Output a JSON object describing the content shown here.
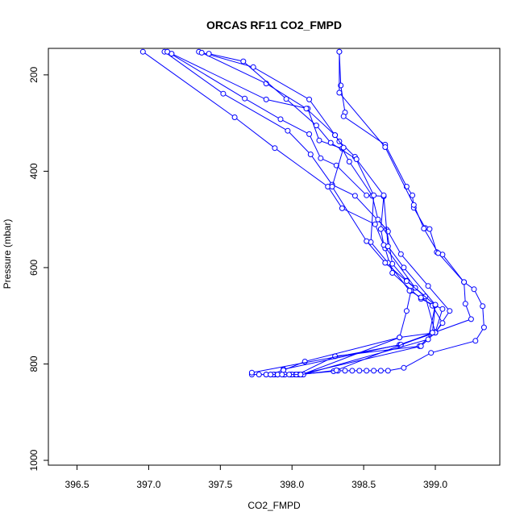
{
  "chart_data": {
    "type": "line",
    "title": "ORCAS RF11 CO2_FMPD",
    "xlabel": "CO2_FMPD",
    "ylabel": "Pressure (mbar)",
    "xlim": [
      396.3,
      399.45
    ],
    "ylim": [
      1010,
      145
    ],
    "y_reversed": true,
    "x_ticks": [
      "396.5",
      "397.0",
      "397.5",
      "398.0",
      "398.5",
      "399.0"
    ],
    "y_ticks": [
      "200",
      "400",
      "600",
      "800",
      "1000"
    ],
    "grid": false,
    "legend": "none",
    "colors": {
      "series": "#0000ff",
      "axes": "#000000",
      "background": "#ffffff"
    },
    "series": [
      {
        "marker": "open-circle",
        "points": [
          [
            398.33,
            152
          ],
          [
            398.34,
            222
          ],
          [
            398.37,
            278
          ],
          [
            398.36,
            286
          ],
          [
            398.65,
            345
          ],
          [
            398.8,
            432
          ],
          [
            398.84,
            450
          ],
          [
            398.85,
            476
          ],
          [
            398.93,
            518
          ],
          [
            398.96,
            520
          ],
          [
            399.01,
            568
          ],
          [
            399.05,
            573
          ],
          [
            399.2,
            630
          ],
          [
            399.27,
            645
          ],
          [
            399.33,
            680
          ],
          [
            399.34,
            724
          ],
          [
            399.28,
            752
          ],
          [
            398.97,
            777
          ],
          [
            398.78,
            808
          ],
          [
            398.67,
            814
          ],
          [
            398.62,
            814
          ],
          [
            398.57,
            814
          ],
          [
            398.52,
            814
          ],
          [
            398.47,
            814
          ],
          [
            398.42,
            814
          ],
          [
            398.37,
            814
          ],
          [
            398.32,
            814
          ],
          [
            398.29,
            815
          ],
          [
            398.05,
            822
          ],
          [
            398.0,
            822
          ],
          [
            397.95,
            822
          ],
          [
            397.9,
            822
          ],
          [
            397.85,
            822
          ]
        ]
      },
      {
        "marker": "open-circle",
        "points": [
          [
            398.33,
            152
          ],
          [
            398.33,
            237
          ],
          [
            398.65,
            350
          ],
          [
            398.85,
            470
          ],
          [
            398.92,
            519
          ],
          [
            399.02,
            570
          ],
          [
            399.2,
            630
          ],
          [
            399.21,
            675
          ],
          [
            399.25,
            707
          ],
          [
            398.99,
            735
          ],
          [
            398.89,
            763
          ],
          [
            398.3,
            784
          ],
          [
            398.04,
            822
          ],
          [
            397.99,
            822
          ],
          [
            397.94,
            822
          ],
          [
            397.88,
            822
          ],
          [
            397.82,
            822
          ],
          [
            397.77,
            822
          ],
          [
            397.72,
            822
          ]
        ]
      },
      {
        "marker": "open-circle",
        "points": [
          [
            396.96,
            152
          ],
          [
            397.6,
            288
          ],
          [
            397.88,
            352
          ],
          [
            398.25,
            432
          ],
          [
            398.35,
            477
          ],
          [
            398.58,
            510
          ],
          [
            398.65,
            560
          ],
          [
            398.7,
            611
          ],
          [
            398.9,
            665
          ],
          [
            399.05,
            686
          ],
          [
            399.0,
            734
          ],
          [
            398.75,
            760
          ],
          [
            397.94,
            811
          ],
          [
            397.87,
            822
          ],
          [
            397.82,
            822
          ]
        ]
      },
      {
        "marker": "open-circle",
        "points": [
          [
            397.11,
            152
          ],
          [
            397.52,
            239
          ],
          [
            397.97,
            316
          ],
          [
            398.13,
            365
          ],
          [
            398.28,
            428
          ],
          [
            398.44,
            451
          ],
          [
            398.66,
            521
          ],
          [
            398.7,
            592
          ],
          [
            398.8,
            627
          ],
          [
            398.93,
            660
          ],
          [
            399.0,
            735
          ],
          [
            398.75,
            745
          ],
          [
            398.09,
            795
          ],
          [
            397.94,
            813
          ],
          [
            397.9,
            822
          ],
          [
            397.85,
            822
          ]
        ]
      },
      {
        "marker": "open-circle",
        "points": [
          [
            397.13,
            152
          ],
          [
            397.67,
            249
          ],
          [
            397.92,
            292
          ],
          [
            398.12,
            323
          ],
          [
            398.2,
            373
          ],
          [
            398.31,
            388
          ],
          [
            398.52,
            450
          ],
          [
            398.64,
            452
          ],
          [
            398.62,
            520
          ],
          [
            398.64,
            553
          ],
          [
            398.86,
            642
          ],
          [
            398.83,
            648
          ],
          [
            398.8,
            690
          ],
          [
            398.75,
            745
          ],
          [
            398.07,
            822
          ],
          [
            398.02,
            822
          ]
        ]
      },
      {
        "marker": "open-circle",
        "points": [
          [
            397.16,
            156
          ],
          [
            397.82,
            251
          ],
          [
            398.11,
            270
          ],
          [
            398.19,
            336
          ],
          [
            398.35,
            353
          ],
          [
            398.4,
            380
          ],
          [
            398.56,
            451
          ],
          [
            398.6,
            500
          ],
          [
            398.67,
            525
          ],
          [
            398.76,
            572
          ],
          [
            398.95,
            638
          ],
          [
            399.1,
            690
          ],
          [
            399.0,
            735
          ],
          [
            398.76,
            760
          ],
          [
            397.72,
            818
          ]
        ]
      },
      {
        "marker": "open-circle",
        "points": [
          [
            397.35,
            152
          ],
          [
            397.73,
            184
          ],
          [
            398.12,
            251
          ],
          [
            398.3,
            325
          ],
          [
            398.33,
            338
          ],
          [
            398.44,
            370
          ],
          [
            398.57,
            450
          ],
          [
            398.55,
            547
          ],
          [
            398.67,
            590
          ],
          [
            398.82,
            648
          ],
          [
            398.9,
            662
          ],
          [
            398.98,
            679
          ],
          [
            399.05,
            715
          ],
          [
            399.0,
            735
          ],
          [
            398.9,
            763
          ],
          [
            398.05,
            822
          ],
          [
            398.0,
            822
          ],
          [
            397.95,
            822
          ],
          [
            397.9,
            822
          ]
        ]
      },
      {
        "marker": "open-circle",
        "points": [
          [
            397.37,
            154
          ],
          [
            397.82,
            218
          ],
          [
            398.1,
            270
          ],
          [
            398.3,
            325
          ],
          [
            398.36,
            351
          ],
          [
            398.28,
            432
          ],
          [
            398.52,
            545
          ],
          [
            398.65,
            590
          ],
          [
            398.8,
            628
          ],
          [
            399.0,
            678
          ],
          [
            398.95,
            749
          ],
          [
            398.08,
            822
          ],
          [
            398.03,
            822
          ]
        ]
      },
      {
        "marker": "open-circle",
        "points": [
          [
            397.42,
            156
          ],
          [
            397.66,
            172
          ],
          [
            397.96,
            250
          ],
          [
            398.17,
            305
          ],
          [
            398.27,
            341
          ],
          [
            398.45,
            375
          ],
          [
            398.64,
            450
          ],
          [
            398.67,
            556
          ],
          [
            398.78,
            600
          ],
          [
            399.0,
            677
          ],
          [
            398.98,
            735
          ],
          [
            398.31,
            813
          ],
          [
            398.06,
            822
          ],
          [
            397.98,
            822
          ],
          [
            397.93,
            822
          ]
        ]
      }
    ]
  }
}
